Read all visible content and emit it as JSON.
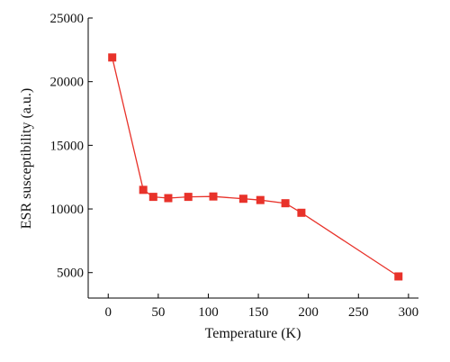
{
  "chart_data": {
    "type": "line",
    "title": "",
    "xlabel": "Temperature (K)",
    "ylabel": "ESR susceptibility (a.u.)",
    "xlim": [
      -20,
      310
    ],
    "ylim": [
      3000,
      25000
    ],
    "x_ticks": [
      0,
      50,
      100,
      150,
      200,
      250,
      300
    ],
    "y_ticks": [
      5000,
      10000,
      15000,
      20000,
      25000
    ],
    "grid": false,
    "legend": "none",
    "series": [
      {
        "color": "#e8322a",
        "marker": "square",
        "points": [
          {
            "x": 4,
            "y": 21900
          },
          {
            "x": 35,
            "y": 11500
          },
          {
            "x": 45,
            "y": 10950
          },
          {
            "x": 60,
            "y": 10850
          },
          {
            "x": 80,
            "y": 10950
          },
          {
            "x": 105,
            "y": 10980
          },
          {
            "x": 135,
            "y": 10800
          },
          {
            "x": 152,
            "y": 10700
          },
          {
            "x": 177,
            "y": 10450
          },
          {
            "x": 193,
            "y": 9700
          },
          {
            "x": 290,
            "y": 4700
          }
        ]
      }
    ]
  }
}
